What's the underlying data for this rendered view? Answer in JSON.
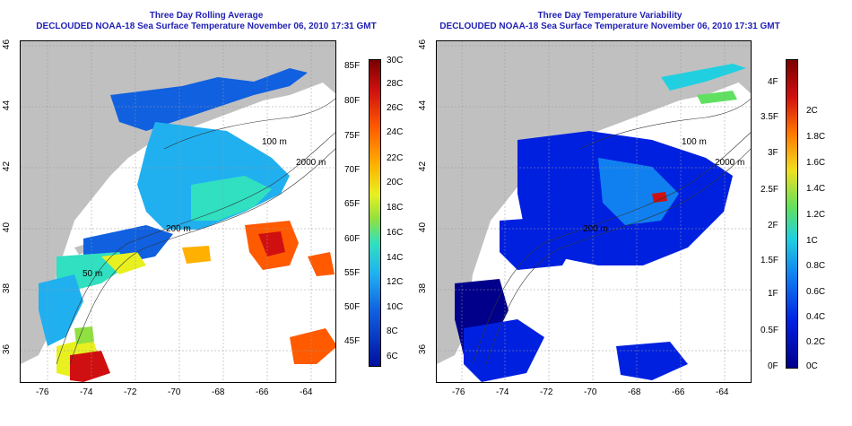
{
  "left_panel": {
    "title": "Three Day Rolling Average",
    "subtitle": "DECLOUDED NOAA-18 Sea Surface Temperature November 06, 2010 17:31 GMT",
    "colorbar_f": [
      "85F",
      "80F",
      "75F",
      "70F",
      "65F",
      "60F",
      "55F",
      "50F",
      "45F"
    ],
    "colorbar_c": [
      "30C",
      "28C",
      "26C",
      "24C",
      "22C",
      "20C",
      "18C",
      "16C",
      "14C",
      "12C",
      "10C",
      "8C",
      "6C"
    ]
  },
  "right_panel": {
    "title": "Three Day Temperature Variability",
    "subtitle": "DECLOUDED NOAA-18 Sea Surface Temperature November 06, 2010 17:31 GMT",
    "colorbar_f": [
      "4F",
      "3.5F",
      "3F",
      "2.5F",
      "2F",
      "1.5F",
      "1F",
      "0.5F",
      "0F"
    ],
    "colorbar_c": [
      "2C",
      "1.8C",
      "1.6C",
      "1.4C",
      "1.2C",
      "1C",
      "0.8C",
      "0.6C",
      "0.4C",
      "0.2C",
      "0C"
    ]
  },
  "x_ticks": [
    "-76",
    "-74",
    "-72",
    "-70",
    "-68",
    "-66",
    "-64"
  ],
  "y_ticks": [
    "46",
    "44",
    "42",
    "40",
    "38",
    "36"
  ],
  "contour_labels": [
    "100 m",
    "2000 m",
    "200 m",
    "50 m",
    "100 m",
    "2000 m",
    "200 m"
  ],
  "colors": {
    "land": "#c0c0c0",
    "title": "#1f1fb4",
    "sst_scale": [
      "#7a0000",
      "#d01010",
      "#ff5a00",
      "#ffb000",
      "#e8f020",
      "#90e040",
      "#30e0c0",
      "#20b0f0",
      "#1060e0",
      "#0010a0"
    ],
    "var_scale": [
      "#7a0000",
      "#d01010",
      "#ff7a00",
      "#f0e020",
      "#60e060",
      "#20d0e0",
      "#1080f0",
      "#0020e0",
      "#00008a"
    ]
  }
}
